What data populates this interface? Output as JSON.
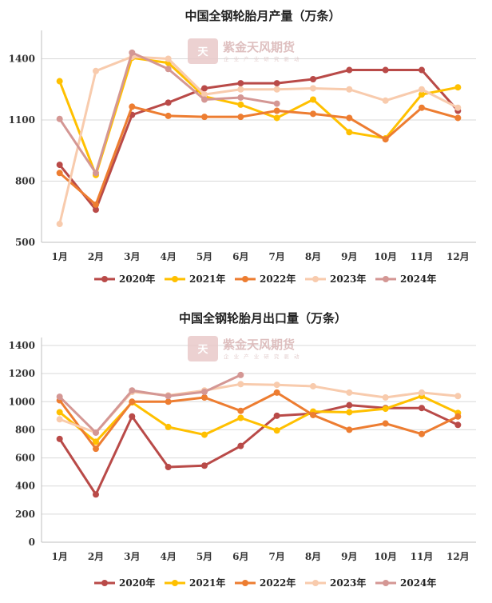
{
  "watermark": {
    "brand": "紫金天风期货",
    "tagline": "企 业 产 业 研 究 驱 动"
  },
  "chart_data": [
    {
      "type": "line",
      "title": "中国全钢轮胎月产量（万条）",
      "categories": [
        "1月",
        "2月",
        "3月",
        "4月",
        "5月",
        "6月",
        "7月",
        "8月",
        "9月",
        "10月",
        "11月",
        "12月"
      ],
      "ylim": [
        500,
        1500
      ],
      "yticks": [
        500,
        800,
        1100,
        1400
      ],
      "grid": true,
      "legend": "bottom",
      "series": [
        {
          "name": "2020年",
          "color": "#b94a48",
          "values": [
            880,
            660,
            1125,
            1185,
            1255,
            1280,
            1280,
            1300,
            1345,
            1345,
            1345,
            1145
          ]
        },
        {
          "name": "2021年",
          "color": "#ffc000",
          "values": [
            1290,
            830,
            1405,
            1380,
            1215,
            1175,
            1110,
            1200,
            1040,
            1010,
            1225,
            1260
          ]
        },
        {
          "name": "2022年",
          "color": "#ed7d31",
          "values": [
            840,
            685,
            1165,
            1120,
            1115,
            1115,
            1145,
            1130,
            1110,
            1005,
            1160,
            1110
          ]
        },
        {
          "name": "2023年",
          "color": "#f8cbad",
          "values": [
            590,
            1340,
            1410,
            1400,
            1225,
            1250,
            1250,
            1255,
            1250,
            1195,
            1250,
            1160
          ]
        },
        {
          "name": "2024年",
          "color": "#d49794",
          "values": [
            1105,
            840,
            1430,
            1350,
            1200,
            1210,
            1180,
            null,
            null,
            null,
            null,
            null
          ]
        }
      ]
    },
    {
      "type": "line",
      "title": "中国全钢轮胎月出口量（万条）",
      "categories": [
        "1月",
        "2月",
        "3月",
        "4月",
        "5月",
        "6月",
        "7月",
        "8月",
        "9月",
        "10月",
        "11月",
        "12月"
      ],
      "ylim": [
        0,
        1400
      ],
      "yticks": [
        0,
        200,
        400,
        600,
        800,
        1000,
        1200,
        1400
      ],
      "grid": true,
      "legend": "bottom",
      "series": [
        {
          "name": "2020年",
          "color": "#b94a48",
          "values": [
            735,
            340,
            895,
            535,
            545,
            685,
            900,
            915,
            975,
            955,
            955,
            835
          ]
        },
        {
          "name": "2021年",
          "color": "#ffc000",
          "values": [
            925,
            715,
            995,
            820,
            765,
            885,
            795,
            930,
            925,
            950,
            1040,
            920
          ]
        },
        {
          "name": "2022年",
          "color": "#ed7d31",
          "values": [
            1010,
            665,
            1000,
            1000,
            1030,
            935,
            1065,
            905,
            800,
            845,
            770,
            895
          ]
        },
        {
          "name": "2023年",
          "color": "#f8cbad",
          "values": [
            875,
            780,
            1070,
            1045,
            1080,
            1125,
            1120,
            1110,
            1065,
            1030,
            1065,
            1040
          ]
        },
        {
          "name": "2024年",
          "color": "#d49794",
          "values": [
            1035,
            780,
            1080,
            1040,
            1070,
            1190,
            null,
            null,
            null,
            null,
            null,
            null
          ]
        }
      ]
    }
  ]
}
